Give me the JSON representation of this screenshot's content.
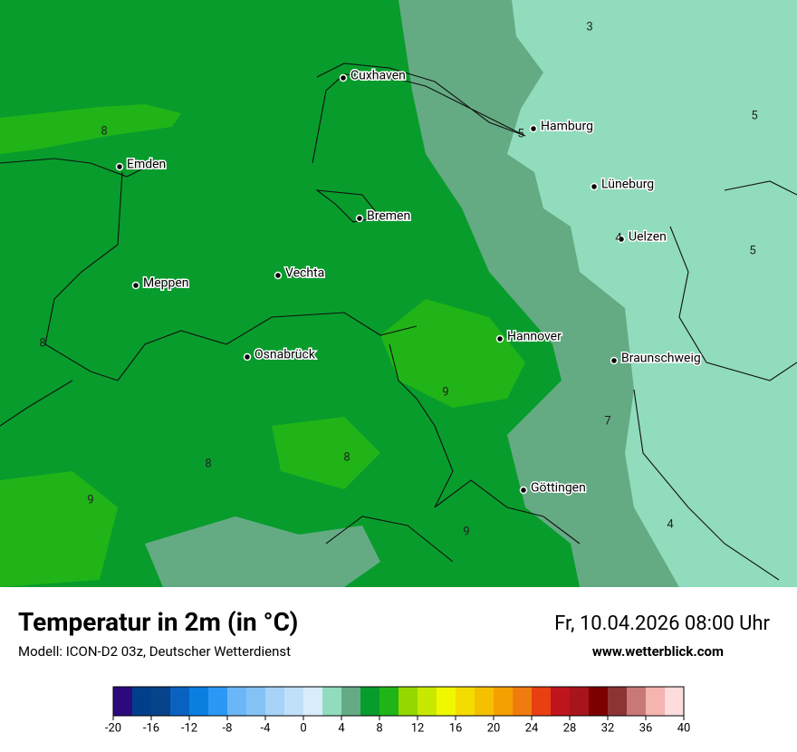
{
  "header": {
    "title": "Temperatur in 2m (in °C)",
    "model": "Modell: ICON-D2 03z, Deutscher Wetterdienst",
    "datetime": "Fr, 10.04.2026 08:00 Uhr",
    "website": "www.wetterblick.com"
  },
  "cities": [
    "Cuxhaven",
    "Hamburg",
    "Emden",
    "Lüneburg",
    "Bremen",
    "Uelzen",
    "Meppen",
    "Vechta",
    "Hannover",
    "Osnabrück",
    "Braunschweig",
    "Göttingen"
  ],
  "contour_labels": [
    3,
    5,
    5,
    8,
    4,
    5,
    8,
    9,
    7,
    8,
    8,
    9,
    9,
    4
  ],
  "legend": {
    "ticks": [
      -20,
      -16,
      -12,
      -8,
      -4,
      0,
      4,
      8,
      12,
      16,
      20,
      24,
      28,
      32,
      36,
      40
    ],
    "colors": [
      "#2c0a7e",
      "#023f8b",
      "#06438a",
      "#0a62c0",
      "#0a7fe0",
      "#2c98f5",
      "#6ab6f7",
      "#84c2f6",
      "#a6d3f7",
      "#c0e0fa",
      "#d8ecfc",
      "#90dcbc",
      "#64ab84",
      "#089c2c",
      "#20b418",
      "#94d800",
      "#c8e800",
      "#f0f800",
      "#f4dc00",
      "#f4c000",
      "#f4a000",
      "#f07c10",
      "#e84010",
      "#c0141c",
      "#a8141c",
      "#7c0000",
      "#8c3434",
      "#c87878",
      "#f4b4b0",
      "#fcdcdc"
    ]
  }
}
